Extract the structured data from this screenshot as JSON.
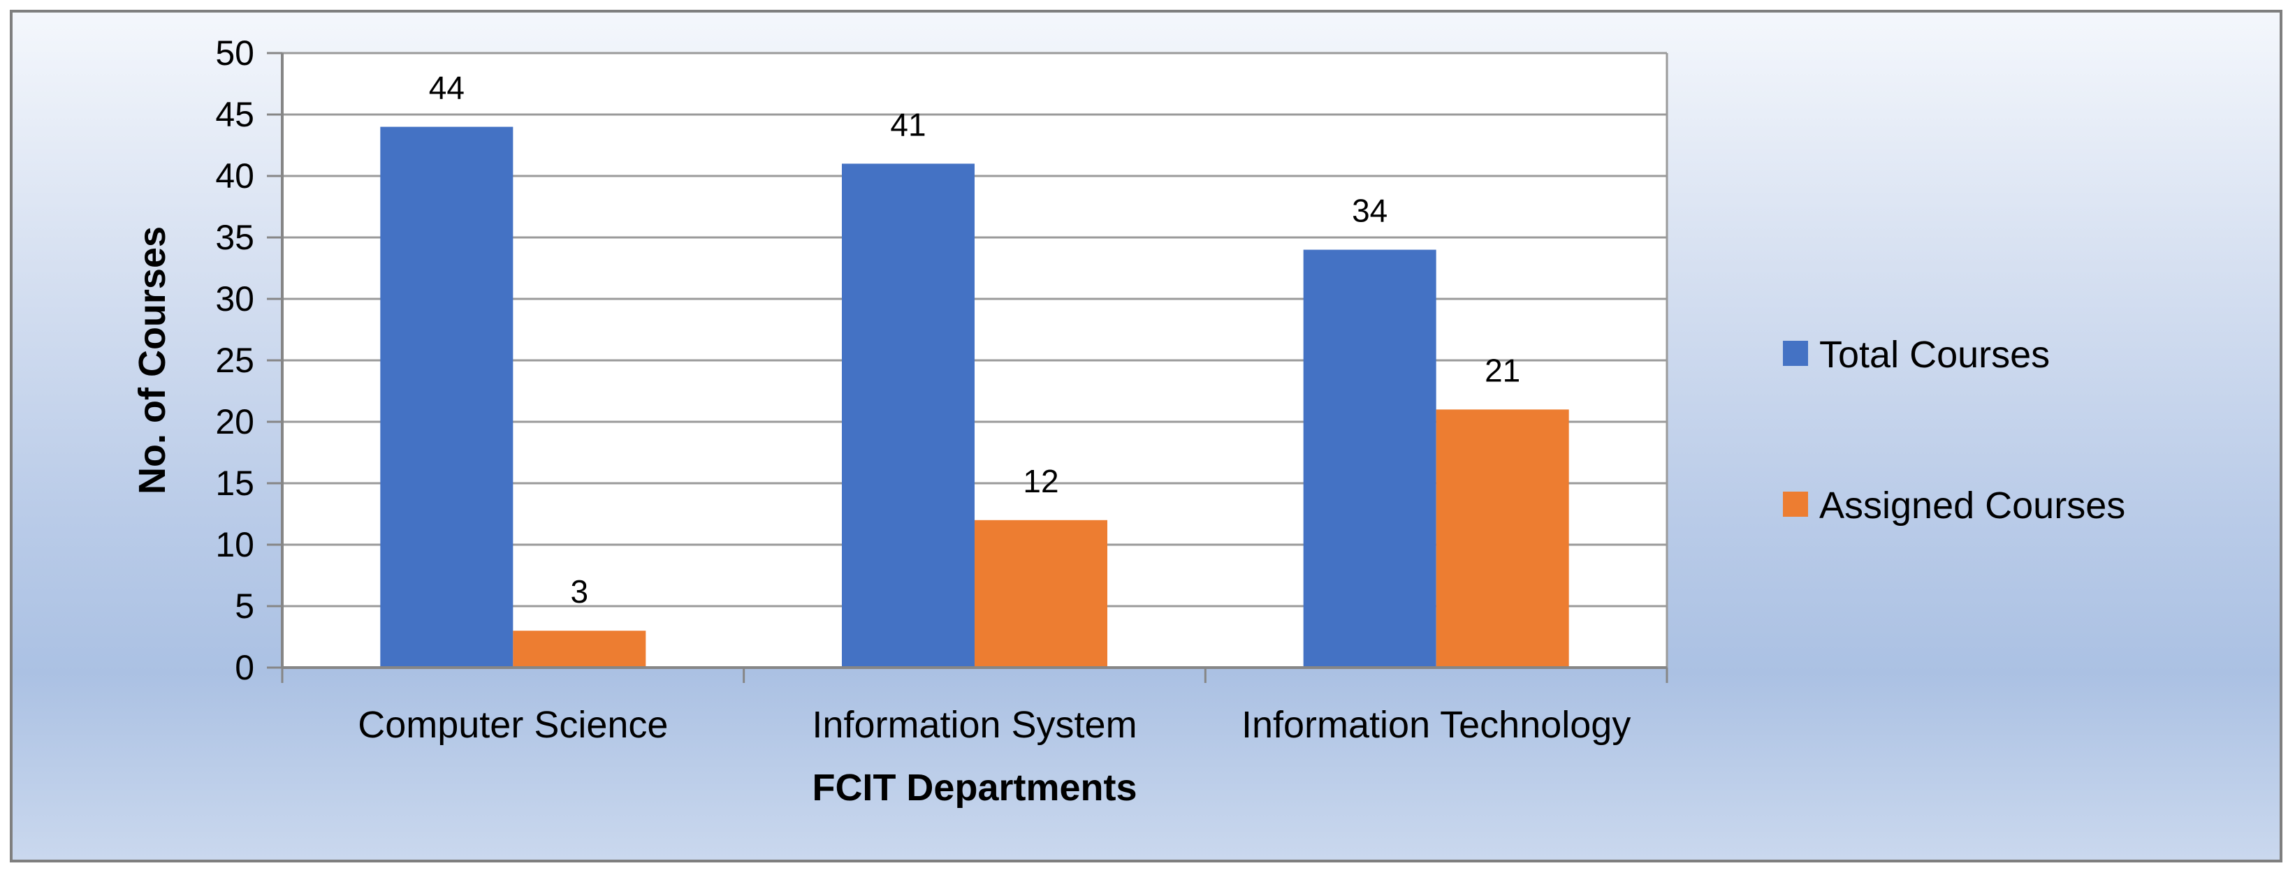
{
  "chart_data": {
    "type": "bar",
    "title": "",
    "xlabel": "FCIT Departments",
    "ylabel": "No. of Courses",
    "categories": [
      "Computer Science",
      "Information System",
      "Information Technology"
    ],
    "series": [
      {
        "name": "Total Courses",
        "values": [
          44,
          41,
          34
        ],
        "color": "#4472c4"
      },
      {
        "name": "Assigned Courses",
        "values": [
          3,
          12,
          21
        ],
        "color": "#ed7d31"
      }
    ],
    "ylim": [
      0,
      50
    ],
    "yticks": [
      0,
      5,
      10,
      15,
      20,
      25,
      30,
      35,
      40,
      45,
      50
    ],
    "grid": true,
    "data_labels": true,
    "legend_position": "right"
  }
}
